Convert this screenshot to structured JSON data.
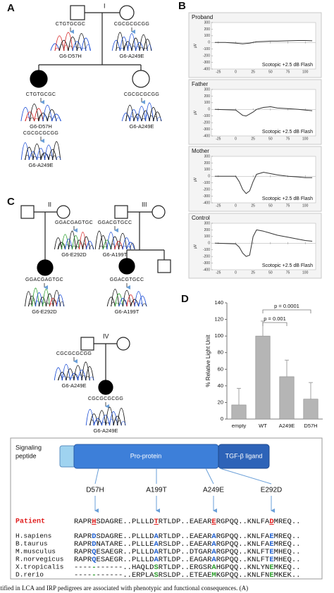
{
  "panel_labels": [
    "A",
    "B",
    "C",
    "D"
  ],
  "generations": [
    "I",
    "II",
    "III",
    "IV"
  ],
  "chromatograms": [
    {
      "sequence": "CTGTGCGC",
      "variant": "G6-D57H"
    },
    {
      "sequence": "CGCGCGCGG",
      "variant": "G6-A249E"
    },
    {
      "sequence": "CTGTGCGC",
      "variant": "G6-D57H"
    },
    {
      "sequence": "CGCGCGCGG",
      "variant": "G6-A249E"
    },
    {
      "sequence": "CGCGCGCGG",
      "variant": "G6-A249E"
    },
    {
      "sequence": "GGACGAGTGC",
      "variant": "G6-E292D"
    },
    {
      "sequence": "GGACGAGTGC",
      "variant": "G6-E292D"
    },
    {
      "sequence": "GGACGTGCC",
      "variant": "G6-A199T"
    },
    {
      "sequence": "GGACGTGCC",
      "variant": "G6-A199T"
    },
    {
      "sequence": "CGCGCGCGG",
      "variant": "G6-A249E"
    },
    {
      "sequence": "CGCGCGCGG",
      "variant": "G6-A249E"
    }
  ],
  "erg": {
    "y_unit": "µV",
    "stimulus": "Scotopic +2.5 dB Flash",
    "xlim": [
      -35,
      115
    ],
    "ylim": [
      -400,
      300
    ],
    "xticks": [
      -25,
      0,
      25,
      50,
      75,
      100
    ],
    "yticks": [
      300,
      200,
      100,
      0,
      -100,
      -200,
      -300,
      -400
    ],
    "x": [
      -30,
      -15,
      0,
      5,
      10,
      15,
      20,
      25,
      30,
      40,
      50,
      60,
      75,
      90,
      100,
      110
    ],
    "traces": [
      {
        "title": "Proband",
        "values": [
          0,
          0,
          -10,
          -15,
          -20,
          -15,
          -10,
          0,
          10,
          15,
          20,
          20,
          25,
          30,
          30,
          25
        ]
      },
      {
        "title": "Father",
        "values": [
          0,
          -5,
          -10,
          -50,
          -90,
          -100,
          -70,
          -40,
          0,
          30,
          40,
          20,
          10,
          0,
          -10,
          -20
        ]
      },
      {
        "title": "Mother",
        "values": [
          0,
          0,
          0,
          -80,
          -200,
          -260,
          -220,
          -80,
          30,
          60,
          40,
          20,
          0,
          -10,
          -20,
          -20
        ]
      },
      {
        "title": "Control",
        "values": [
          0,
          -5,
          -10,
          -60,
          -150,
          -200,
          -180,
          100,
          200,
          180,
          150,
          120,
          90,
          60,
          40,
          30
        ]
      }
    ],
    "color": "#333333"
  },
  "bar_chart": {
    "type": "bar",
    "y_label": "% Relative Light Unit",
    "categories": [
      "empty",
      "WT",
      "A249E",
      "D57H"
    ],
    "values": [
      17,
      100,
      51,
      24
    ],
    "errors": [
      20,
      18,
      20,
      20
    ],
    "ylim": [
      0,
      140
    ],
    "yticks": [
      0,
      20,
      40,
      60,
      80,
      100,
      120,
      140
    ],
    "color": "#b5b5b5",
    "annotations": [
      {
        "text": "p = 0.0001",
        "between": [
          "WT",
          "D57H"
        ]
      },
      {
        "text": "p = 0.001",
        "between": [
          "WT",
          "A249E"
        ]
      }
    ]
  },
  "protein": {
    "signaling_peptide": [
      "Signaling",
      "peptide"
    ],
    "pro_protein": "Pro-protein",
    "ligand": "TGF-β ligand",
    "mutations": [
      "D57H",
      "A199T",
      "A249E",
      "E292D"
    ]
  },
  "alignment": [
    {
      "species": "Patient",
      "name_color": "#e02020",
      "highlight_color": "#e02020",
      "parts": [
        "RAPR",
        "H",
        "SDAGRE..PLLLD",
        "T",
        "RTLDP..EAEAR",
        "E",
        "RGPQQ..KNLFA",
        "D",
        "MREQ.."
      ]
    },
    {
      "species": "H.sapiens",
      "highlight_color": "#1f5fd0",
      "parts": [
        "RAPR",
        "D",
        "SDAGRE..PLLLD",
        "A",
        "RTLDP..EAEAR",
        "A",
        "RGPQQ..KNLFA",
        "E",
        "MREQ.."
      ]
    },
    {
      "species": "B.taurus",
      "highlight_color": "#1f5fd0",
      "parts": [
        "RAPR",
        "D",
        "NATARE..PLLLE",
        "A",
        "RSLDP..EAEAR",
        "A",
        "RGPQQ..KNLFA",
        "E",
        "MREQ.."
      ]
    },
    {
      "species": "M.musculus",
      "highlight_color": "#1f5fd0",
      "parts": [
        "RAPR",
        "Q",
        "ESAEGR..PLLLD",
        "A",
        "RTLDP..DTGAR",
        "A",
        "RGPQQ..KNLFT",
        "E",
        "MHEQ.."
      ]
    },
    {
      "species": "R.norvegicus",
      "highlight_color": "#1f5fd0",
      "parts": [
        "RAPR",
        "Q",
        "ESAEGR..PLLLD",
        "A",
        "RTLDP..EAGAR",
        "A",
        "RGPQQ..KNLFT",
        "E",
        "MHEQ.."
      ]
    },
    {
      "species": "X.tropicalis",
      "highlight_color": "#2a9d2a",
      "parts": [
        "----",
        "-",
        "------..HAQLD",
        "S",
        "RTLDP..ERGSR",
        "A",
        "HGPQQ..KNLYN",
        "E",
        "MKEQ.."
      ]
    },
    {
      "species": "D.rerio",
      "highlight_color": "#2a9d2a",
      "parts": [
        "----",
        "-",
        "------..ERPLA",
        "S",
        "RSLDP..ETEAE",
        "M",
        "KGPQQ..KNLFN",
        "E",
        "MKEK.."
      ]
    }
  ],
  "caption": "ntified in LCA and IRP pedigrees are associated with phenotypic and functional consequences. (A)"
}
